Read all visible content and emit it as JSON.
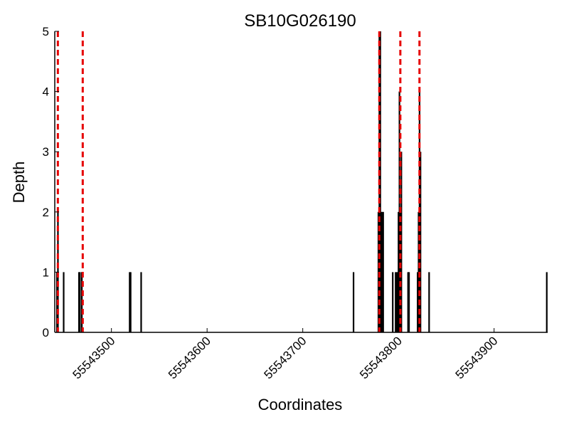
{
  "chart_data": {
    "type": "bar",
    "title": "SB10G026190",
    "xlabel": "Coordinates",
    "ylabel": "Depth",
    "xlim": [
      55543443,
      55543955
    ],
    "ylim": [
      0,
      5
    ],
    "x_ticks": [
      55543500,
      55543600,
      55543700,
      55543800,
      55543900
    ],
    "y_ticks": [
      0,
      1,
      2,
      3,
      4,
      5
    ],
    "grid": false,
    "series": [
      {
        "type": "bar",
        "color": "#000000",
        "x": [
          55543443,
          55543444,
          55543450,
          55543466,
          55543467,
          55543469,
          55543519,
          55543520,
          55543531,
          55543753,
          55543779,
          55543780,
          55543781,
          55543782,
          55543783,
          55543784,
          55543794,
          55543797,
          55543798,
          55543799,
          55543800,
          55543801,
          55543802,
          55543803,
          55543810,
          55543811,
          55543820,
          55543821,
          55543822,
          55543823,
          55543832,
          55543955
        ],
        "values": [
          1,
          2,
          1,
          1,
          1,
          1,
          1,
          1,
          1,
          1,
          2,
          5,
          5,
          2,
          2,
          2,
          1,
          1,
          1,
          1,
          2,
          4,
          2,
          3,
          1,
          1,
          1,
          2,
          4,
          3,
          1,
          1
        ]
      }
    ],
    "vlines": {
      "color": "#e60000",
      "style": "dashed",
      "x": [
        55543444,
        55543470,
        55543780,
        55543802,
        55543822
      ]
    }
  }
}
